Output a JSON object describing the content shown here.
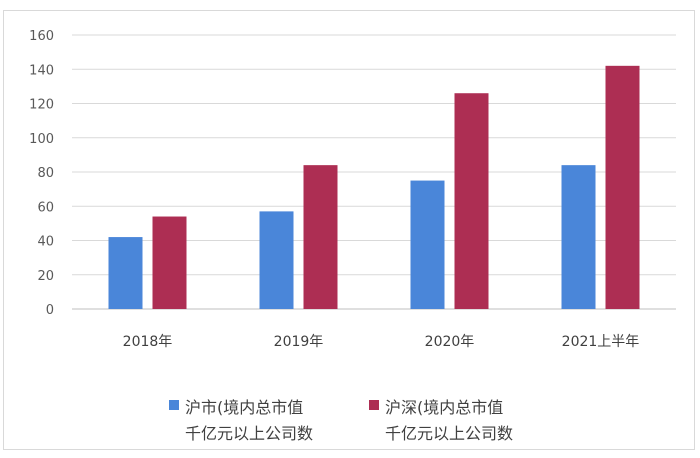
{
  "chart_data": {
    "type": "bar",
    "categories": [
      "2018年",
      "2019年",
      "2020年",
      "2021上半年"
    ],
    "series": [
      {
        "name": "沪市(境内总市值 千亿元以上公司数",
        "name_lines": [
          "沪市(境内总市值",
          "千亿元以上公司数"
        ],
        "color": "#4a86d9",
        "values": [
          42,
          57,
          75,
          84
        ]
      },
      {
        "name": "沪深(境内总市值 千亿元以上公司数",
        "name_lines": [
          "沪深(境内总市值",
          "千亿元以上公司数"
        ],
        "color": "#ad2e53",
        "values": [
          54,
          84,
          126,
          142
        ]
      }
    ],
    "yticks": [
      "0",
      "20",
      "40",
      "60",
      "80",
      "100",
      "120",
      "140",
      "160"
    ],
    "ylim": [
      0,
      160
    ],
    "grid": true,
    "legend_position": "bottom"
  }
}
